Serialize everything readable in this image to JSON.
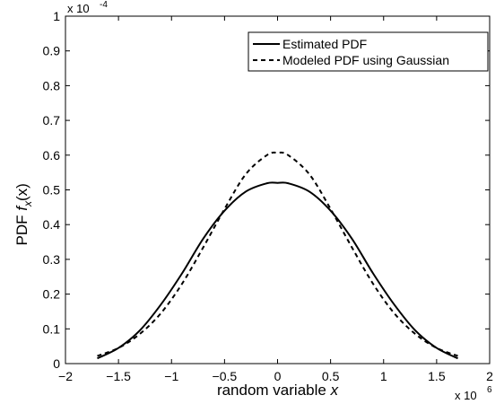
{
  "chart_data": {
    "type": "line",
    "xlabel": "random variable x",
    "xlabel_main": "random variable ",
    "xlabel_var": "x",
    "ylabel_prefix": "PDF ",
    "ylabel_f": "f",
    "ylabel_sub": "x",
    "ylabel_arg": "(x)",
    "x_multiplier": {
      "base": "x 10",
      "exp": "6"
    },
    "y_multiplier": {
      "base": "x 10",
      "exp": "-4"
    },
    "xlim": [
      -2,
      2
    ],
    "ylim": [
      0,
      1
    ],
    "x_units_scale": 1000000,
    "y_units_scale": 0.0001,
    "xticks": [
      -2,
      -1.5,
      -1,
      -0.5,
      0,
      0.5,
      1,
      1.5,
      2
    ],
    "xtick_labels": [
      "−2",
      "−1.5",
      "−1",
      "−0.5",
      "0",
      "0.5",
      "1",
      "1.5",
      "2"
    ],
    "yticks": [
      0,
      0.1,
      0.2,
      0.3,
      0.4,
      0.5,
      0.6,
      0.7,
      0.8,
      0.9,
      1
    ],
    "ytick_labels": [
      "0",
      "0.1",
      "0.2",
      "0.3",
      "0.4",
      "0.5",
      "0.6",
      "0.7",
      "0.8",
      "0.9",
      "1"
    ],
    "grid": false,
    "legend_position": "top-right",
    "series": [
      {
        "name": "Estimated PDF",
        "style": "solid",
        "color": "#000000",
        "x": [
          -1.7,
          -1.5,
          -1.3,
          -1.1,
          -0.9,
          -0.7,
          -0.5,
          -0.3,
          -0.1,
          0,
          0.1,
          0.3,
          0.5,
          0.7,
          0.9,
          1.1,
          1.3,
          1.5,
          1.7
        ],
        "y": [
          0.015,
          0.045,
          0.095,
          0.17,
          0.26,
          0.36,
          0.44,
          0.495,
          0.519,
          0.52,
          0.519,
          0.495,
          0.44,
          0.36,
          0.26,
          0.17,
          0.095,
          0.045,
          0.015
        ]
      },
      {
        "name": "Modeled PDF using Gaussian",
        "style": "dashed",
        "color": "#000000",
        "x": [
          -1.7,
          -1.5,
          -1.3,
          -1.1,
          -0.9,
          -0.7,
          -0.5,
          -0.3,
          -0.1,
          0,
          0.1,
          0.3,
          0.5,
          0.7,
          0.9,
          1.1,
          1.3,
          1.5,
          1.7
        ],
        "y": [
          0.022,
          0.045,
          0.085,
          0.145,
          0.23,
          0.335,
          0.445,
          0.545,
          0.6,
          0.607,
          0.6,
          0.545,
          0.445,
          0.335,
          0.23,
          0.145,
          0.085,
          0.045,
          0.022
        ]
      }
    ]
  }
}
